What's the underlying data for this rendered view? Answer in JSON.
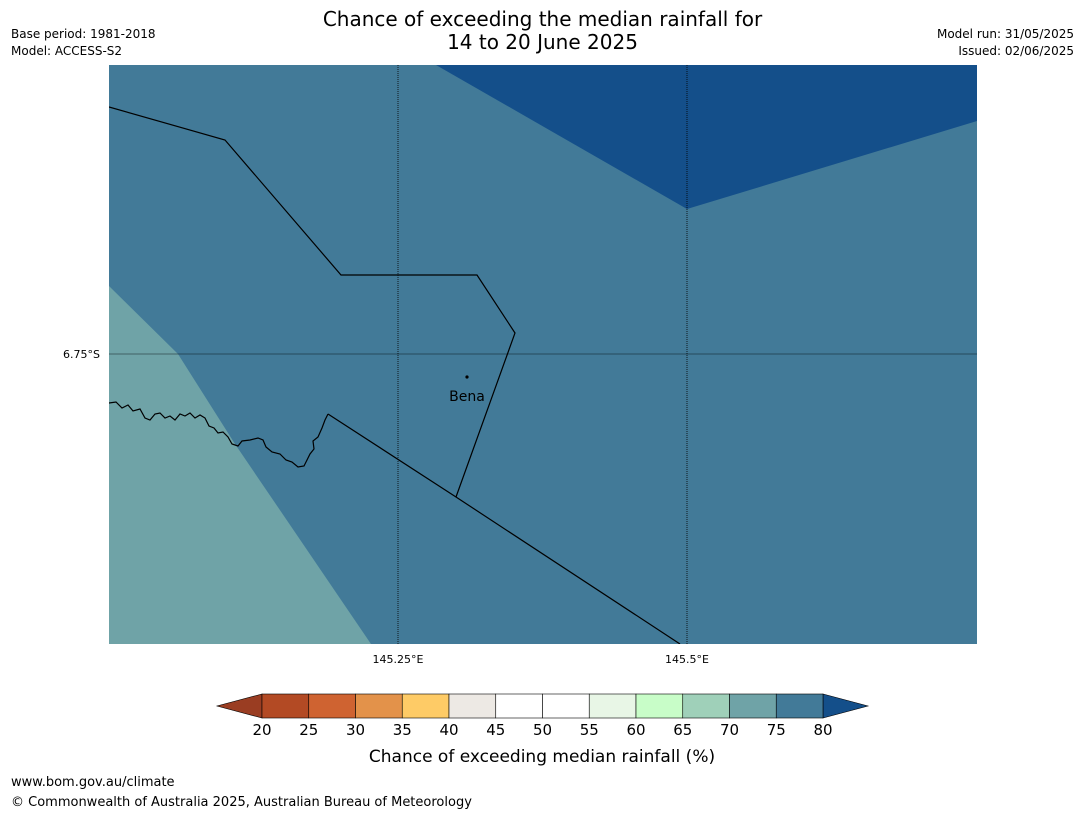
{
  "title": {
    "line1": "Chance of exceeding the median rainfall for",
    "line2": "14 to 20 June 2025"
  },
  "meta_left": {
    "base_period": "Base period: 1981-2018",
    "model": "Model: ACCESS-S2"
  },
  "meta_right": {
    "model_run": "Model run: 31/05/2025",
    "issued": "Issued: 02/06/2025"
  },
  "map": {
    "lat_label": "6.75°S",
    "lon_labels": [
      "145.25°E",
      "145.5°E"
    ],
    "place": "Bena",
    "colors": {
      "band_75_80": "#427a98",
      "band_above_80": "#144f8a",
      "band_70_75": "#6fa3a7",
      "boundary": "#000000"
    }
  },
  "legend": {
    "title": "Chance of exceeding median rainfall (%)",
    "ticks": [
      "20",
      "25",
      "30",
      "35",
      "40",
      "45",
      "50",
      "55",
      "60",
      "65",
      "70",
      "75",
      "80"
    ],
    "under_color": "#9a3d22",
    "over_color": "#144f8a",
    "colors": [
      "#b34a24",
      "#cf6331",
      "#e3924a",
      "#fecb66",
      "#ede9e4",
      "#ffffff",
      "#ffffff",
      "#e8f6e6",
      "#c8fdc8",
      "#9fd0b9",
      "#6fa3a7",
      "#427a98"
    ]
  },
  "footer": {
    "url": "www.bom.gov.au/climate",
    "copyright": "© Commonwealth of Australia 2025, Australian Bureau of Meteorology"
  }
}
